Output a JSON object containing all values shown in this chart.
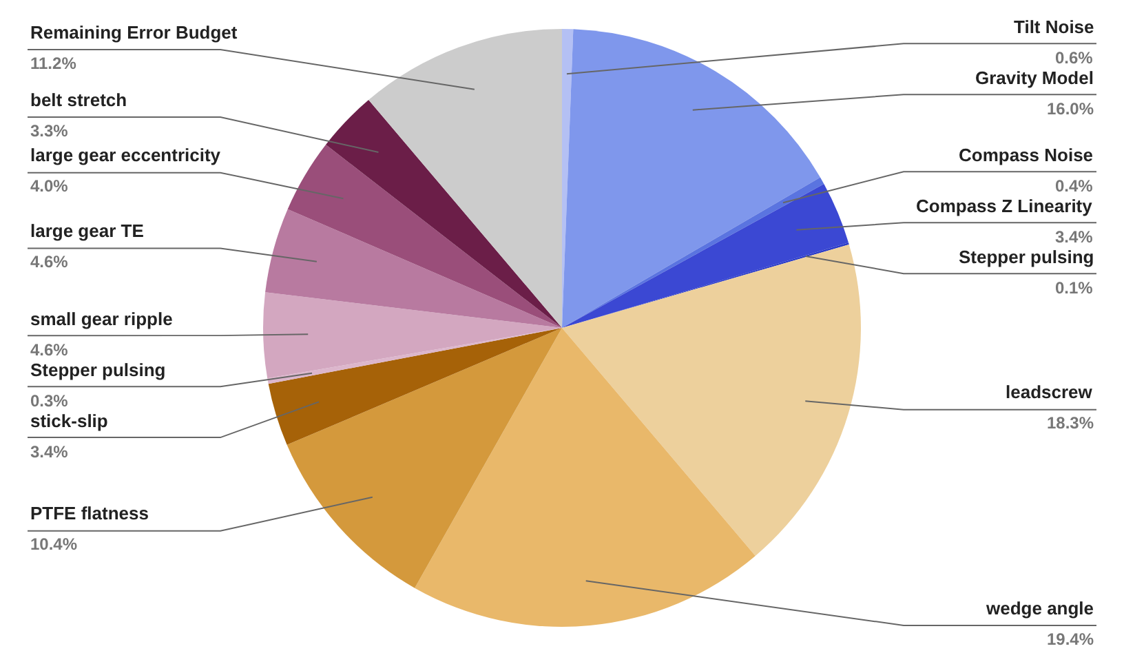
{
  "chart_data": {
    "type": "pie",
    "categories": [
      "Tilt Noise",
      "Gravity Model",
      "Compass Noise",
      "Compass Z Linearity",
      "Stepper pulsing",
      "leadscrew",
      "wedge angle",
      "PTFE flatness",
      "stick-slip",
      "Stepper pulsing",
      "small gear ripple",
      "large gear TE",
      "large gear eccentricity",
      "belt stretch",
      "Remaining Error Budget"
    ],
    "values": [
      0.6,
      16.0,
      0.4,
      3.4,
      0.1,
      18.3,
      19.4,
      10.4,
      3.4,
      0.3,
      4.6,
      4.6,
      4.0,
      3.3,
      11.2
    ],
    "value_labels": [
      "0.6%",
      "16.0%",
      "0.4%",
      "3.4%",
      "0.1%",
      "18.3%",
      "19.4%",
      "10.4%",
      "3.4%",
      "0.3%",
      "4.6%",
      "4.6%",
      "4.0%",
      "3.3%",
      "11.2%"
    ],
    "colors": [
      "#b4c0f4",
      "#7f97ec",
      "#5a74e0",
      "#3b48d3",
      "#2a3bc8",
      "#edd09c",
      "#e9b86a",
      "#d4993c",
      "#a66208",
      "#dcb6cc",
      "#d3a7c0",
      "#b87aa0",
      "#9a4e7a",
      "#6b1e48",
      "#cccccc"
    ]
  }
}
